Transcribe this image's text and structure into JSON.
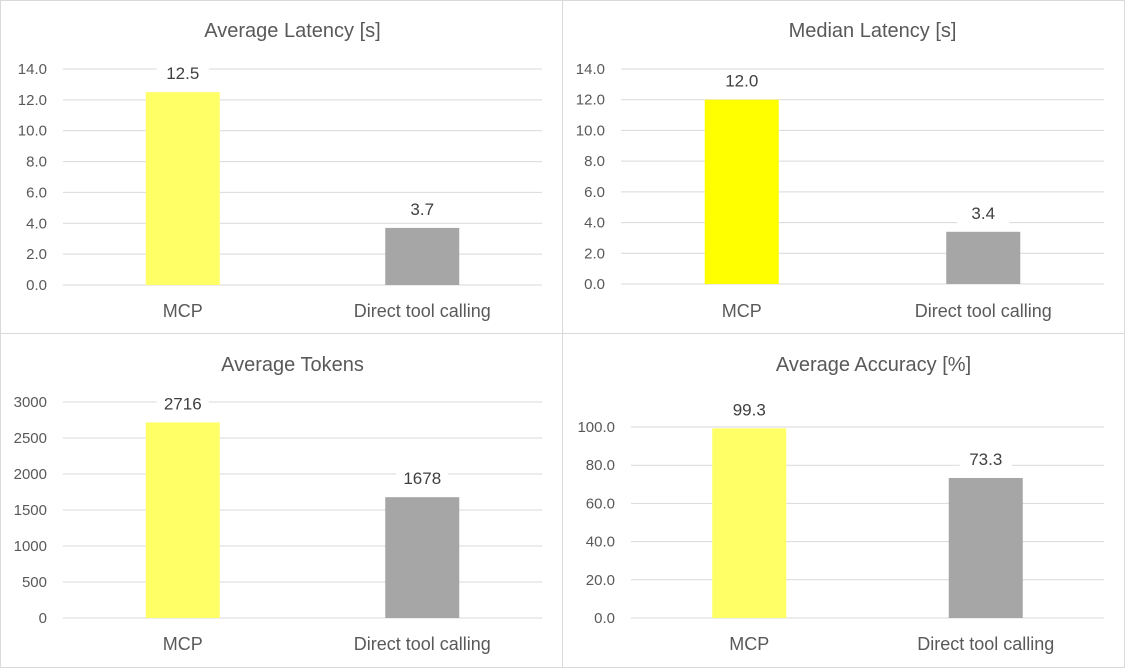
{
  "chart_data": [
    {
      "type": "bar",
      "title": "Average Latency [s]",
      "categories": [
        "MCP",
        "Direct tool calling"
      ],
      "values": [
        12.5,
        3.7
      ],
      "value_labels": [
        "12.5",
        "3.7"
      ],
      "colors": [
        "#ffff66",
        "#a6a6a6"
      ],
      "yticks": [
        "0.0",
        "2.0",
        "4.0",
        "6.0",
        "8.0",
        "10.0",
        "12.0",
        "14.0"
      ],
      "ylim": [
        0,
        14
      ],
      "grid": true
    },
    {
      "type": "bar",
      "title": "Median Latency [s]",
      "categories": [
        "MCP",
        "Direct tool calling"
      ],
      "values": [
        12.0,
        3.4
      ],
      "value_labels": [
        "12.0",
        "3.4"
      ],
      "colors": [
        "#ffff00",
        "#a6a6a6"
      ],
      "yticks": [
        "0.0",
        "2.0",
        "4.0",
        "6.0",
        "8.0",
        "10.0",
        "12.0",
        "14.0"
      ],
      "ylim": [
        0,
        14
      ],
      "grid": true
    },
    {
      "type": "bar",
      "title": "Average Tokens",
      "categories": [
        "MCP",
        "Direct tool calling"
      ],
      "values": [
        2716,
        1678
      ],
      "value_labels": [
        "2716",
        "1678"
      ],
      "colors": [
        "#ffff66",
        "#a6a6a6"
      ],
      "yticks": [
        "0",
        "500",
        "1000",
        "1500",
        "2000",
        "2500",
        "3000"
      ],
      "ylim": [
        0,
        3000
      ],
      "grid": true
    },
    {
      "type": "bar",
      "title": "Average Accuracy [%]",
      "categories": [
        "MCP",
        "Direct tool calling"
      ],
      "values": [
        99.3,
        73.3
      ],
      "value_labels": [
        "99.3",
        "73.3"
      ],
      "colors": [
        "#ffff66",
        "#a6a6a6"
      ],
      "yticks": [
        "0.0",
        "20.0",
        "40.0",
        "60.0",
        "80.0",
        "100.0"
      ],
      "ylim": [
        0,
        100
      ],
      "grid": true
    }
  ]
}
